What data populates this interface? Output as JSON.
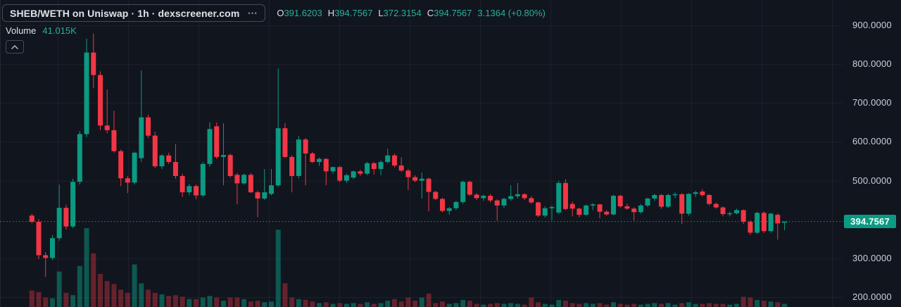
{
  "header": {
    "symbol_button": {
      "label": "SHEB/WETH on Uniswap · 1h · dexscreener.com",
      "menu_dots": "•••"
    },
    "ohlc": {
      "o_label": "O",
      "o": "391.6203",
      "h_label": "H",
      "h": "394.7567",
      "l_label": "L",
      "l": "372.3154",
      "c_label": "C",
      "c": "394.7567",
      "change": "3.1364 (+0.80%)"
    },
    "volume_label": "Volume",
    "volume_value": "41.015K"
  },
  "price_axis": {
    "ticks": [
      "900.0000",
      "800.0000",
      "700.0000",
      "600.0000",
      "500.0000",
      "300.0000",
      "200.0000"
    ],
    "last_price_label": "394.7567"
  },
  "colors": {
    "background": "#11151e",
    "grid": "rgba(240,243,250,0.055)",
    "up": "#0a9b82",
    "down": "#f23645",
    "vol_up": "rgba(10,155,130,0.5)",
    "vol_down": "rgba(242,54,69,0.38)",
    "text_primary": "#dfe1e7",
    "text_dim": "#8a8e99",
    "value_teal": "#27b0a0",
    "axis_text": "#cbd0da",
    "button_border": "#434b59",
    "last_price_line": "#0a9b82"
  },
  "chart_data": {
    "type": "candlestick+volume",
    "pair": "SHEB/WETH",
    "venue": "Uniswap",
    "interval": "1h",
    "source": "dexscreener.com",
    "legend_ohlc": {
      "open": 391.6203,
      "high": 394.7567,
      "low": 372.3154,
      "close": 394.7567,
      "change": 3.1364,
      "change_pct": 0.8
    },
    "legend_volume": "41.015K",
    "last_close": 394.7567,
    "price_range_visible": [
      174.6,
      965.3
    ],
    "y_ticks": [
      900,
      800,
      700,
      600,
      500,
      300,
      200
    ],
    "grid": true,
    "legend_position": "top-left",
    "candles_note": "each candle = [open, high, low, close, relative_volume_0_to_1]",
    "candles": [
      [
        410,
        415,
        390,
        394,
        0.21
      ],
      [
        394,
        401,
        298,
        308,
        0.19
      ],
      [
        308,
        316,
        252,
        301,
        0.12
      ],
      [
        301,
        360,
        295,
        352,
        0.11
      ],
      [
        352,
        490,
        345,
        430,
        0.45
      ],
      [
        430,
        438,
        374,
        382,
        0.18
      ],
      [
        382,
        505,
        378,
        497,
        0.15
      ],
      [
        497,
        628,
        490,
        620,
        0.52
      ],
      [
        620,
        866,
        612,
        830,
        1.0
      ],
      [
        830,
        879,
        738,
        772,
        0.68
      ],
      [
        772,
        782,
        630,
        642,
        0.42
      ],
      [
        642,
        735,
        622,
        630,
        0.33
      ],
      [
        630,
        680,
        572,
        576,
        0.29
      ],
      [
        576,
        580,
        486,
        506,
        0.22
      ],
      [
        506,
        512,
        468,
        495,
        0.18
      ],
      [
        495,
        575,
        490,
        572,
        0.54
      ],
      [
        558,
        784,
        548,
        663,
        0.3
      ],
      [
        663,
        670,
        610,
        616,
        0.22
      ],
      [
        616,
        626,
        532,
        537,
        0.18
      ],
      [
        537,
        568,
        530,
        565,
        0.16
      ],
      [
        565,
        572,
        543,
        548,
        0.14
      ],
      [
        548,
        594,
        505,
        512,
        0.15
      ],
      [
        512,
        518,
        458,
        470,
        0.13
      ],
      [
        470,
        492,
        462,
        486,
        0.1
      ],
      [
        486,
        490,
        452,
        462,
        0.1
      ],
      [
        462,
        548,
        458,
        543,
        0.12
      ],
      [
        543,
        650,
        536,
        633,
        0.14
      ],
      [
        640,
        650,
        556,
        561,
        0.12
      ],
      [
        561,
        648,
        488,
        566,
        0.08
      ],
      [
        566,
        570,
        508,
        512,
        0.12
      ],
      [
        515,
        520,
        439,
        493,
        0.12
      ],
      [
        493,
        518,
        490,
        515,
        0.1
      ],
      [
        515,
        520,
        468,
        470,
        0.07
      ],
      [
        470,
        474,
        406,
        454,
        0.08
      ],
      [
        454,
        530,
        450,
        470,
        0.06
      ],
      [
        466,
        530,
        462,
        488,
        0.07
      ],
      [
        488,
        789,
        484,
        635,
        0.98
      ],
      [
        635,
        648,
        558,
        561,
        0.3
      ],
      [
        561,
        566,
        470,
        512,
        0.12
      ],
      [
        512,
        615,
        506,
        606,
        0.1
      ],
      [
        606,
        610,
        488,
        570,
        0.09
      ],
      [
        570,
        574,
        545,
        548,
        0.07
      ],
      [
        548,
        560,
        538,
        556,
        0.05
      ],
      [
        556,
        558,
        488,
        524,
        0.06
      ],
      [
        524,
        536,
        518,
        535,
        0.04
      ],
      [
        535,
        538,
        496,
        500,
        0.05
      ],
      [
        500,
        518,
        494,
        514,
        0.04
      ],
      [
        508,
        526,
        504,
        524,
        0.05
      ],
      [
        524,
        528,
        512,
        518,
        0.04
      ],
      [
        518,
        548,
        514,
        545,
        0.06
      ],
      [
        545,
        548,
        516,
        530,
        0.04
      ],
      [
        530,
        552,
        514,
        548,
        0.05
      ],
      [
        548,
        582,
        544,
        565,
        0.08
      ],
      [
        565,
        570,
        534,
        539,
        0.1
      ],
      [
        539,
        560,
        522,
        526,
        0.07
      ],
      [
        526,
        530,
        476,
        509,
        0.12
      ],
      [
        509,
        514,
        496,
        500,
        0.08
      ],
      [
        500,
        521,
        454,
        505,
        0.12
      ],
      [
        505,
        508,
        421,
        471,
        0.17
      ],
      [
        471,
        474,
        450,
        453,
        0.05
      ],
      [
        453,
        456,
        419,
        422,
        0.07
      ],
      [
        422,
        432,
        412,
        429,
        0.04
      ],
      [
        429,
        448,
        424,
        445,
        0.05
      ],
      [
        445,
        500,
        440,
        497,
        0.09
      ],
      [
        497,
        500,
        460,
        464,
        0.08
      ],
      [
        464,
        468,
        450,
        455,
        0.04
      ],
      [
        455,
        464,
        448,
        461,
        0.03
      ],
      [
        461,
        466,
        444,
        449,
        0.04
      ],
      [
        449,
        452,
        397,
        436,
        0.05
      ],
      [
        436,
        456,
        430,
        453,
        0.04
      ],
      [
        453,
        488,
        448,
        460,
        0.05
      ],
      [
        460,
        494,
        454,
        465,
        0.04
      ],
      [
        465,
        468,
        450,
        455,
        0.03
      ],
      [
        455,
        460,
        440,
        444,
        0.12
      ],
      [
        444,
        446,
        406,
        410,
        0.06
      ],
      [
        410,
        434,
        405,
        429,
        0.04
      ],
      [
        429,
        436,
        398,
        432,
        0.03
      ],
      [
        418,
        500,
        414,
        494,
        0.09
      ],
      [
        494,
        504,
        424,
        427,
        0.08
      ],
      [
        440,
        446,
        408,
        428,
        0.05
      ],
      [
        428,
        430,
        406,
        412,
        0.04
      ],
      [
        412,
        438,
        410,
        436,
        0.05
      ],
      [
        436,
        442,
        424,
        439,
        0.04
      ],
      [
        439,
        440,
        403,
        420,
        0.05
      ],
      [
        420,
        424,
        410,
        413,
        0.03
      ],
      [
        413,
        464,
        411,
        461,
        0.06
      ],
      [
        461,
        464,
        430,
        434,
        0.04
      ],
      [
        434,
        441,
        425,
        428,
        0.03
      ],
      [
        428,
        432,
        397,
        419,
        0.04
      ],
      [
        419,
        440,
        415,
        436,
        0.03
      ],
      [
        436,
        456,
        432,
        454,
        0.04
      ],
      [
        454,
        466,
        448,
        463,
        0.05
      ],
      [
        463,
        466,
        428,
        433,
        0.04
      ],
      [
        433,
        466,
        429,
        463,
        0.05
      ],
      [
        463,
        470,
        455,
        465,
        0.03
      ],
      [
        465,
        468,
        388,
        415,
        0.05
      ],
      [
        415,
        468,
        410,
        466,
        0.06
      ],
      [
        466,
        474,
        458,
        470,
        0.04
      ],
      [
        472,
        478,
        459,
        463,
        0.04
      ],
      [
        463,
        465,
        436,
        440,
        0.05
      ],
      [
        440,
        444,
        428,
        431,
        0.04
      ],
      [
        431,
        434,
        408,
        414,
        0.04
      ],
      [
        414,
        420,
        408,
        416,
        0.03
      ],
      [
        416,
        428,
        413,
        424,
        0.04
      ],
      [
        424,
        426,
        388,
        394,
        0.13
      ],
      [
        394,
        398,
        360,
        366,
        0.12
      ],
      [
        366,
        420,
        362,
        417,
        0.09
      ],
      [
        417,
        421,
        365,
        370,
        0.08
      ],
      [
        370,
        417,
        366,
        415,
        0.07
      ],
      [
        412,
        416,
        348,
        390,
        0.06
      ],
      [
        391.62,
        394.76,
        372.32,
        394.76,
        0.04
      ]
    ]
  }
}
